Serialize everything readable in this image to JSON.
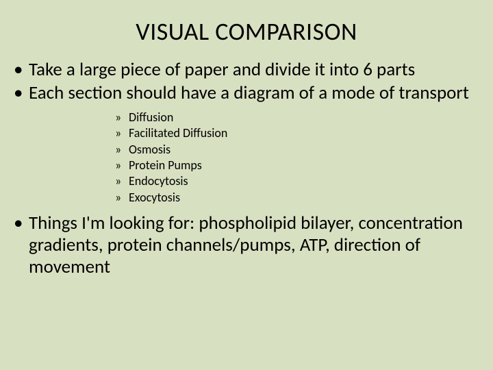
{
  "slide": {
    "background_color": "#d8e0c2",
    "text_color": "#000000",
    "font_family": "Calibri",
    "title": {
      "text": "VISUAL COMPARISON",
      "fontsize": 36
    },
    "bullets": [
      {
        "level": 1,
        "marker": "•",
        "text": "Take a large piece of paper and divide it into 6 parts"
      },
      {
        "level": 1,
        "marker": "•",
        "text": "Each section should have a diagram of a mode of transport"
      }
    ],
    "sub_bullets": [
      {
        "marker": "»",
        "text": "Diffusion"
      },
      {
        "marker": "»",
        "text": "Facilitated Diffusion"
      },
      {
        "marker": "»",
        "text": "Osmosis"
      },
      {
        "marker": "»",
        "text": "Protein Pumps"
      },
      {
        "marker": "»",
        "text": "Endocytosis"
      },
      {
        "marker": "»",
        "text": "Exocytosis"
      }
    ],
    "closing_bullet": {
      "level": 1,
      "marker": "•",
      "text": "Things I'm looking for:  phospholipid bilayer, concentration gradients, protein channels/pumps, ATP, direction of movement"
    },
    "bullet_l1_fontsize": 27,
    "bullet_l2_fontsize": 18
  }
}
